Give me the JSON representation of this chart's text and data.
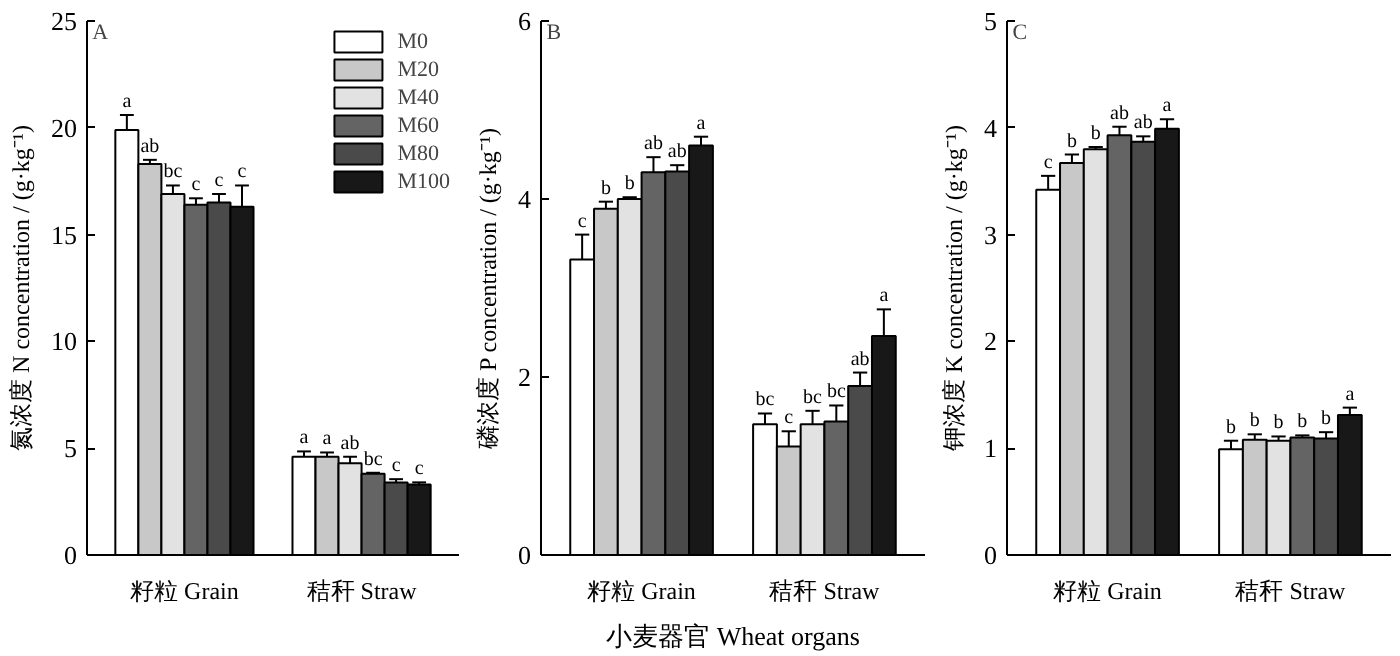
{
  "chart_data": [
    {
      "type": "bar",
      "annotations": [
        "A"
      ],
      "ylabel": "氮浓度 N concentration / (g·kg⁻¹)",
      "categories": [
        "籽粒 Grain",
        "秸秆 Straw"
      ],
      "ylim": [
        0,
        25
      ],
      "yticks": [
        0,
        5,
        10,
        15,
        20,
        25
      ],
      "grid": false,
      "legend": "top right",
      "series": [
        {
          "name": "M0",
          "color": "#ffffff",
          "values": [
            19.9,
            4.6
          ],
          "errors": [
            [
              19.9,
              20.6
            ],
            [
              4.6,
              4.85
            ]
          ],
          "value_labels": [
            "a",
            "a"
          ]
        },
        {
          "name": "M20",
          "color": "#c8c8c8",
          "values": [
            18.3,
            4.6
          ],
          "errors": [
            [
              18.3,
              18.5
            ],
            [
              4.6,
              4.8
            ]
          ],
          "value_labels": [
            "ab",
            "a"
          ]
        },
        {
          "name": "M40",
          "color": "#e2e2e2",
          "values": [
            16.9,
            4.3
          ],
          "errors": [
            [
              16.9,
              17.3
            ],
            [
              4.3,
              4.6
            ]
          ],
          "value_labels": [
            "bc",
            "ab"
          ]
        },
        {
          "name": "M60",
          "color": "#646464",
          "values": [
            16.4,
            3.8
          ],
          "errors": [
            [
              16.4,
              16.7
            ],
            [
              3.8,
              3.85
            ]
          ],
          "value_labels": [
            "c",
            "bc"
          ]
        },
        {
          "name": "M80",
          "color": "#4a4a4a",
          "values": [
            16.5,
            3.4
          ],
          "errors": [
            [
              16.5,
              16.9
            ],
            [
              3.4,
              3.55
            ]
          ],
          "value_labels": [
            "c",
            "c"
          ]
        },
        {
          "name": "M100",
          "color": "#181818",
          "values": [
            16.3,
            3.3
          ],
          "errors": [
            [
              16.3,
              17.3
            ],
            [
              3.3,
              3.4
            ]
          ],
          "value_labels": [
            "c",
            "c"
          ]
        }
      ]
    },
    {
      "type": "bar",
      "annotations": [
        "B"
      ],
      "ylabel": "磷浓度 P concentration / (g·kg⁻¹)",
      "xlabel": "小麦器官 Wheat organs",
      "categories": [
        "籽粒 Grain",
        "秸秆 Straw"
      ],
      "ylim": [
        0,
        6
      ],
      "yticks": [
        0,
        2,
        4,
        6
      ],
      "grid": false,
      "series": [
        {
          "color": "#ffffff",
          "values": [
            3.32,
            1.47
          ],
          "errors": [
            [
              3.32,
              3.6
            ],
            [
              1.47,
              1.59
            ]
          ],
          "value_labels": [
            "c",
            "bc"
          ]
        },
        {
          "color": "#c8c8c8",
          "values": [
            3.89,
            1.22
          ],
          "errors": [
            [
              3.89,
              3.97
            ],
            [
              1.22,
              1.39
            ]
          ],
          "value_labels": [
            "b",
            "c"
          ]
        },
        {
          "color": "#e2e2e2",
          "values": [
            4.0,
            1.47
          ],
          "errors": [
            [
              4.0,
              4.02
            ],
            [
              1.47,
              1.62
            ]
          ],
          "value_labels": [
            "b",
            "bc"
          ]
        },
        {
          "color": "#646464",
          "values": [
            4.3,
            1.5
          ],
          "errors": [
            [
              4.3,
              4.47
            ],
            [
              1.5,
              1.68
            ]
          ],
          "value_labels": [
            "ab",
            "bc"
          ]
        },
        {
          "color": "#4a4a4a",
          "values": [
            4.31,
            1.9
          ],
          "errors": [
            [
              4.31,
              4.38
            ],
            [
              1.9,
              2.05
            ]
          ],
          "value_labels": [
            "ab",
            "ab"
          ]
        },
        {
          "color": "#181818",
          "values": [
            4.6,
            2.46
          ],
          "errors": [
            [
              4.6,
              4.7
            ],
            [
              2.46,
              2.76
            ]
          ],
          "value_labels": [
            "a",
            "a"
          ]
        }
      ]
    },
    {
      "type": "bar",
      "annotations": [
        "C"
      ],
      "ylabel": "钾浓度 K concentration / (g·kg⁻¹)",
      "categories": [
        "籽粒 Grain",
        "秸秆 Straw"
      ],
      "ylim": [
        0,
        5
      ],
      "yticks": [
        0,
        1,
        2,
        3,
        4,
        5
      ],
      "grid": false,
      "series": [
        {
          "color": "#ffffff",
          "values": [
            3.42,
            0.99
          ],
          "errors": [
            [
              3.42,
              3.55
            ],
            [
              0.99,
              1.07
            ]
          ],
          "value_labels": [
            "c",
            "b"
          ]
        },
        {
          "color": "#c8c8c8",
          "values": [
            3.67,
            1.08
          ],
          "errors": [
            [
              3.67,
              3.75
            ],
            [
              1.08,
              1.13
            ]
          ],
          "value_labels": [
            "b",
            "b"
          ]
        },
        {
          "color": "#e2e2e2",
          "values": [
            3.8,
            1.07
          ],
          "errors": [
            [
              3.8,
              3.82
            ],
            [
              1.07,
              1.11
            ]
          ],
          "value_labels": [
            "b",
            "b"
          ]
        },
        {
          "color": "#646464",
          "values": [
            3.93,
            1.1
          ],
          "errors": [
            [
              3.93,
              4.01
            ],
            [
              1.1,
              1.12
            ]
          ],
          "value_labels": [
            "ab",
            "b"
          ]
        },
        {
          "color": "#4a4a4a",
          "values": [
            3.87,
            1.09
          ],
          "errors": [
            [
              3.87,
              3.92
            ],
            [
              1.09,
              1.15
            ]
          ],
          "value_labels": [
            "ab",
            "b"
          ]
        },
        {
          "color": "#181818",
          "values": [
            3.99,
            1.31
          ],
          "errors": [
            [
              3.99,
              4.08
            ],
            [
              1.31,
              1.38
            ]
          ],
          "value_labels": [
            "a",
            "a"
          ]
        }
      ]
    }
  ]
}
